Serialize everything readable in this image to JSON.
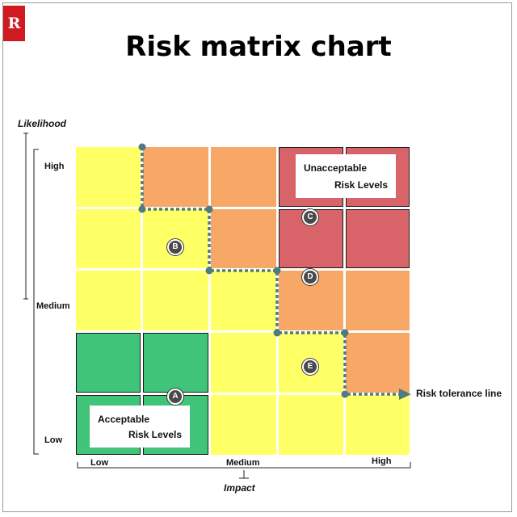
{
  "title": "Risk matrix chart",
  "logo_text": "R",
  "y_axis": {
    "title": "Likelihood",
    "labels": [
      "High",
      "Medium",
      "Low"
    ]
  },
  "x_axis": {
    "title": "Impact",
    "labels": [
      "Low",
      "Medium",
      "High"
    ]
  },
  "unacceptable_box": {
    "line1": "Unacceptable",
    "line2": "Risk Levels"
  },
  "acceptable_box": {
    "line1": "Acceptable",
    "line2": "Risk Levels"
  },
  "markers": [
    "A",
    "B",
    "C",
    "D",
    "E"
  ],
  "tolerance_label": "Risk tolerance line",
  "matrix": [
    [
      "yellow",
      "orange",
      "orange",
      "red",
      "red"
    ],
    [
      "yellow",
      "yellow",
      "orange",
      "red",
      "red"
    ],
    [
      "yellow",
      "yellow",
      "yellow",
      "orange",
      "orange"
    ],
    [
      "green",
      "green",
      "yellow",
      "yellow",
      "orange"
    ],
    [
      "green",
      "green",
      "yellow",
      "yellow",
      "yellow"
    ]
  ],
  "colors": {
    "yellow": "#ffff66",
    "orange": "#f7a766",
    "red": "#d8646a",
    "green": "#40c47a",
    "tolerance_line": "#4d7b7e"
  }
}
